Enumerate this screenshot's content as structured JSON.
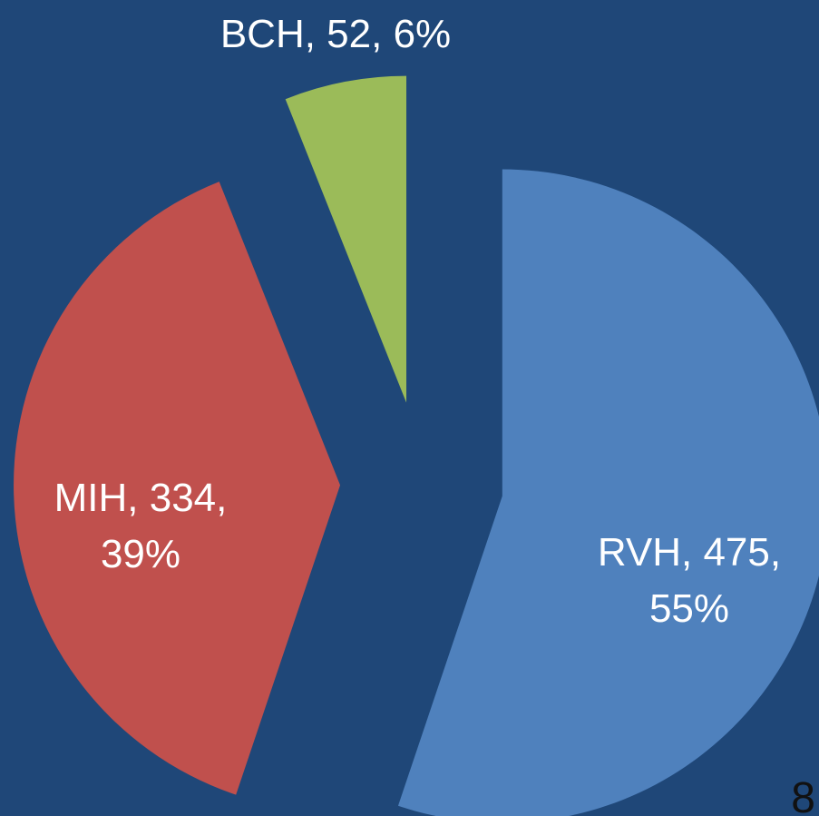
{
  "chart_data": {
    "type": "pie",
    "categories": [
      "RVH",
      "MIH",
      "BCH"
    ],
    "values": [
      475,
      334,
      52
    ],
    "value_labels": [
      "RVH, 475, 55%",
      "MIH, 334, 39%",
      "BCH, 52, 6%"
    ],
    "colors": [
      "#4f81bd",
      "#c0504d",
      "#9bbb59"
    ],
    "exploded": true
  },
  "page_number": "8"
}
